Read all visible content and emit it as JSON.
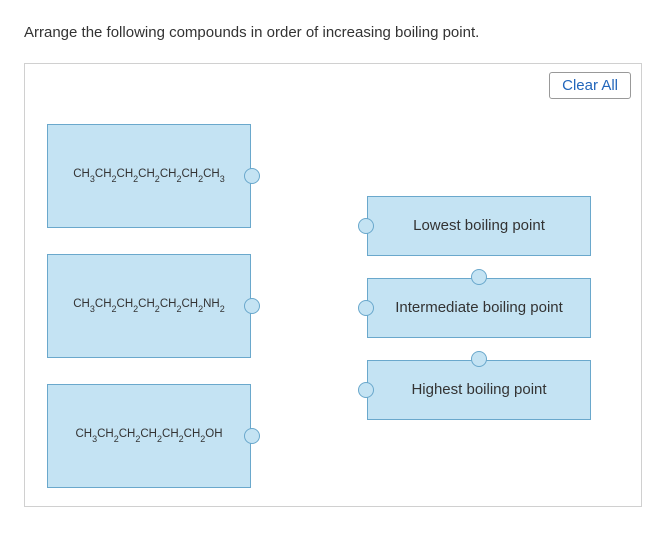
{
  "question": "Arrange the following compounds in order of increasing boiling point.",
  "clearButton": "Clear All",
  "compounds": [
    {
      "formula_html": "CH<sub>3</sub>CH<sub>2</sub>CH<sub>2</sub>CH<sub>2</sub>CH<sub>2</sub>CH<sub>2</sub>CH<sub>3</sub>"
    },
    {
      "formula_html": "CH<sub>3</sub>CH<sub>2</sub>CH<sub>2</sub>CH<sub>2</sub>CH<sub>2</sub>CH<sub>2</sub>NH<sub>2</sub>"
    },
    {
      "formula_html": "CH<sub>3</sub>CH<sub>2</sub>CH<sub>2</sub>CH<sub>2</sub>CH<sub>2</sub>CH<sub>2</sub>OH"
    }
  ],
  "targets": [
    {
      "label": "Lowest boiling point"
    },
    {
      "label": "Intermediate boiling point"
    },
    {
      "label": "Highest boiling point"
    }
  ],
  "colors": {
    "card_bg": "#c4e3f3",
    "card_border": "#6aa8cc",
    "panel_border": "#d0d0d0",
    "text": "#333333",
    "link": "#2266bb"
  }
}
